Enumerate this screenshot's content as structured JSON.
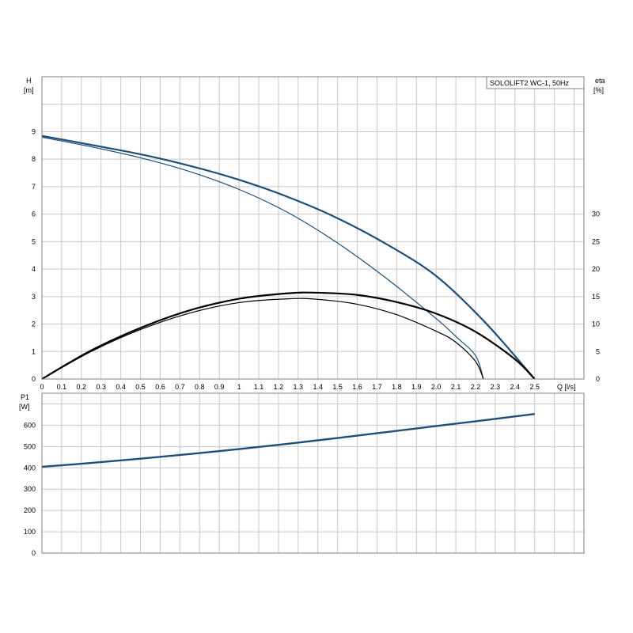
{
  "legend_title": "SOLOLIFT2 WC-1, 50Hz",
  "chart_data": [
    {
      "type": "line",
      "name": "head-efficiency",
      "x_axis": {
        "label": "Q [l/s]",
        "range": [
          0,
          2.75
        ],
        "ticks": [
          0,
          0.1,
          0.2,
          0.3,
          0.4,
          0.5,
          0.6,
          0.7,
          0.8,
          0.9,
          1,
          1.1,
          1.2,
          1.3,
          1.4,
          1.5,
          1.6,
          1.7,
          1.8,
          1.9,
          2.0,
          2.1,
          2.2,
          2.3,
          2.4,
          2.5
        ],
        "tick_labels": [
          "0",
          "0.1",
          "0.2",
          "0.3",
          "0.4",
          "0.5",
          "0.6",
          "0.7",
          "0.8",
          "0.9",
          "1",
          "1.1",
          "1.2",
          "1.3",
          "1.4",
          "1.5",
          "1.6",
          "1.7",
          "1.8",
          "1.9",
          "2.0",
          "2.1",
          "2.2",
          "2.3",
          "2.4",
          "2.5"
        ]
      },
      "y_axis_left": {
        "label_line1": "H",
        "label_line2": "[m]",
        "range": [
          0,
          11
        ],
        "ticks": [
          0,
          1,
          2,
          3,
          4,
          5,
          6,
          7,
          8,
          9
        ],
        "tick_labels": [
          "0",
          "1",
          "2",
          "3",
          "4",
          "5",
          "6",
          "7",
          "8",
          "9"
        ]
      },
      "y_axis_right": {
        "label_line1": "eta",
        "label_line2": "[%]",
        "range": [
          0,
          55
        ],
        "ticks": [
          0,
          5,
          10,
          15,
          20,
          25,
          30
        ],
        "tick_labels": [
          "0",
          "5",
          "10",
          "15",
          "20",
          "25",
          "30"
        ]
      },
      "grid": true,
      "series": [
        {
          "axis": "left",
          "color": "#1f4e79",
          "width": 2.2,
          "x": [
            0,
            0.25,
            0.5,
            0.75,
            1.0,
            1.25,
            1.5,
            1.75,
            2.0,
            2.25,
            2.5
          ],
          "y": [
            8.85,
            8.52,
            8.18,
            7.76,
            7.25,
            6.62,
            5.85,
            4.9,
            3.75,
            2.05,
            0
          ]
        },
        {
          "axis": "left",
          "color": "#1f4e79",
          "width": 1.2,
          "x": [
            0,
            0.25,
            0.5,
            0.75,
            1.0,
            1.25,
            1.5,
            1.75,
            2.0,
            2.1,
            2.2,
            2.24
          ],
          "y": [
            8.8,
            8.45,
            8.05,
            7.55,
            6.9,
            6.05,
            4.95,
            3.65,
            2.2,
            1.55,
            0.85,
            0
          ]
        },
        {
          "axis": "right",
          "color": "#000000",
          "width": 2.2,
          "x": [
            0,
            0.25,
            0.5,
            0.75,
            1.0,
            1.25,
            1.4,
            1.6,
            1.8,
            2.0,
            2.2,
            2.4,
            2.5
          ],
          "y": [
            0,
            5.2,
            9.3,
            12.5,
            14.6,
            15.6,
            15.7,
            15.3,
            14.0,
            11.9,
            8.6,
            3.6,
            0
          ]
        },
        {
          "axis": "right",
          "color": "#000000",
          "width": 1.2,
          "x": [
            0,
            0.25,
            0.5,
            0.75,
            1.0,
            1.25,
            1.4,
            1.6,
            1.8,
            2.0,
            2.1,
            2.2,
            2.24
          ],
          "y": [
            0,
            5.0,
            9.0,
            12.0,
            13.9,
            14.6,
            14.5,
            13.6,
            11.7,
            8.7,
            6.7,
            3.2,
            0
          ]
        }
      ]
    },
    {
      "type": "line",
      "name": "power",
      "x_axis": {
        "range": [
          0,
          2.75
        ]
      },
      "y_axis_left": {
        "label_line1": "P1",
        "label_line2": "[W]",
        "range": [
          0,
          750
        ],
        "ticks": [
          0,
          100,
          200,
          300,
          400,
          500,
          600
        ],
        "tick_labels": [
          "0",
          "100",
          "200",
          "300",
          "400",
          "500",
          "600"
        ]
      },
      "grid": true,
      "series": [
        {
          "axis": "left",
          "color": "#1f4e79",
          "width": 2.4,
          "x": [
            0,
            0.25,
            0.5,
            0.75,
            1.0,
            1.25,
            1.5,
            1.75,
            2.0,
            2.25,
            2.5
          ],
          "y": [
            405,
            423,
            443,
            465,
            488,
            513,
            540,
            568,
            596,
            624,
            653
          ]
        }
      ]
    }
  ]
}
